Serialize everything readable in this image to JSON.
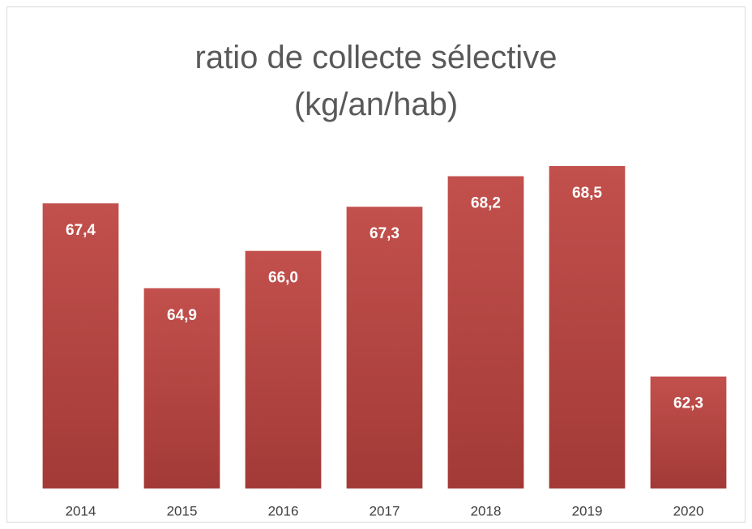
{
  "chart_data": {
    "type": "bar",
    "title": "ratio de collecte sélective (kg/an/hab)",
    "categories": [
      "2014",
      "2015",
      "2016",
      "2017",
      "2018",
      "2019",
      "2020"
    ],
    "values": [
      67.4,
      64.9,
      66.0,
      67.3,
      68.2,
      68.5,
      62.3
    ],
    "value_labels": [
      "67,4",
      "64,9",
      "66,0",
      "67,3",
      "68,2",
      "68,5",
      "62,3"
    ],
    "color": "#b94440",
    "ylim": [
      59,
      69
    ]
  }
}
